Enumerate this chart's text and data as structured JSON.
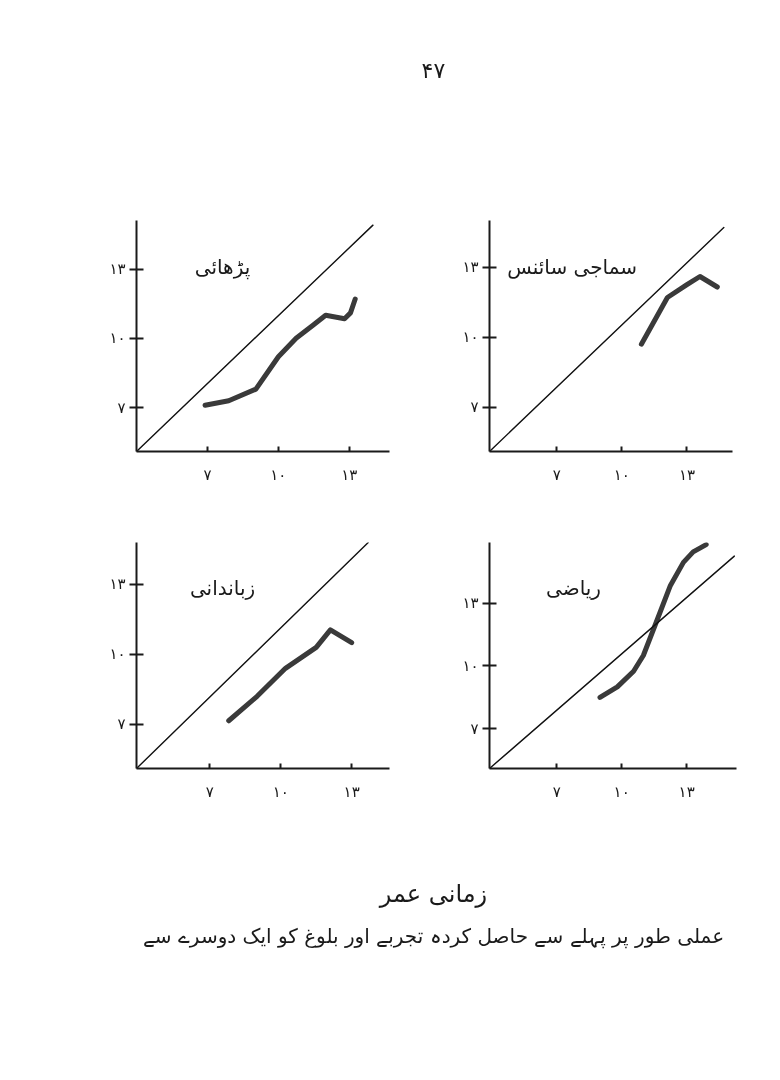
{
  "chart_data": [
    {
      "type": "line",
      "title": "پڑھائی",
      "annotations": [
        "۴۷"
      ],
      "xlim": [
        4.0,
        14.7
      ],
      "ylim": [
        5.1,
        15.1
      ],
      "xticks": [
        {
          "value": 7,
          "label": "۷"
        },
        {
          "value": 10,
          "label": "۱۰"
        },
        {
          "value": 13,
          "label": "۱۳"
        }
      ],
      "yticks": [
        {
          "value": 7,
          "label": "۷"
        },
        {
          "value": 10,
          "label": "۱۰"
        },
        {
          "value": 13,
          "label": "۱۳"
        }
      ],
      "series": [
        {
          "color": "#3a3a3a",
          "x": [
            6.9,
            7.9,
            9.05,
            10.0,
            10.75,
            11.45,
            12.0,
            12.8,
            13.05,
            13.25
          ],
          "values": [
            7.1,
            7.3,
            7.8,
            9.2,
            10.0,
            10.55,
            11.0,
            10.85,
            11.1,
            11.7
          ]
        },
        {
          "color": "#111111",
          "x": [
            4.0,
            14.0
          ],
          "values": [
            5.1,
            14.9
          ]
        }
      ]
    },
    {
      "type": "line",
      "title": "سماجی سائنس",
      "xlim": [
        3.9,
        15.1
      ],
      "ylim": [
        5.1,
        15.0
      ],
      "xticks": [
        {
          "value": 7,
          "label": "۷"
        },
        {
          "value": 10,
          "label": "۱۰"
        },
        {
          "value": 13,
          "label": "۱۳"
        }
      ],
      "yticks": [
        {
          "value": 7,
          "label": "۷"
        },
        {
          "value": 10,
          "label": "۱۰"
        },
        {
          "value": 13,
          "label": "۱۳"
        }
      ],
      "series": [
        {
          "color": "#3a3a3a",
          "x": [
            10.9,
            12.1,
            13.0,
            13.6,
            14.4
          ],
          "values": [
            9.7,
            11.7,
            12.25,
            12.6,
            12.15
          ]
        },
        {
          "color": "#111111",
          "x": [
            3.9,
            14.7
          ],
          "values": [
            5.1,
            14.7
          ]
        }
      ]
    },
    {
      "type": "line",
      "title": "زباندانی",
      "xlim": [
        3.9,
        14.6
      ],
      "ylim": [
        5.1,
        14.8
      ],
      "xticks": [
        {
          "value": 7,
          "label": "۷"
        },
        {
          "value": 10,
          "label": "۱۰"
        },
        {
          "value": 13,
          "label": "۱۳"
        }
      ],
      "yticks": [
        {
          "value": 7,
          "label": "۷"
        },
        {
          "value": 10,
          "label": "۱۰"
        },
        {
          "value": 13,
          "label": "۱۳"
        }
      ],
      "series": [
        {
          "color": "#3a3a3a",
          "x": [
            7.8,
            9.0,
            10.2,
            11.5,
            12.1,
            13.0
          ],
          "values": [
            7.15,
            8.2,
            9.4,
            10.3,
            11.05,
            10.5
          ]
        },
        {
          "color": "#111111",
          "x": [
            3.9,
            13.7
          ],
          "values": [
            5.1,
            14.8
          ]
        }
      ]
    },
    {
      "type": "line",
      "title": "ریاضی",
      "annotations": [
        "زمانی عمر",
        "عملی طور پر پہلے سے حاصل کردہ تجربے اور بلوغ کو ایک دوسرے سے"
      ],
      "xlim": [
        3.9,
        15.3
      ],
      "ylim": [
        5.1,
        15.9
      ],
      "xticks": [
        {
          "value": 7,
          "label": "۷"
        },
        {
          "value": 10,
          "label": "۱۰"
        },
        {
          "value": 13,
          "label": "۱۳"
        }
      ],
      "yticks": [
        {
          "value": 7,
          "label": "۷"
        },
        {
          "value": 10,
          "label": "۱۰"
        },
        {
          "value": 13,
          "label": "۱۳"
        }
      ],
      "series": [
        {
          "color": "#3a3a3a",
          "x": [
            9.0,
            9.8,
            10.55,
            11.0,
            11.6,
            12.25,
            12.85,
            13.3,
            13.9
          ],
          "values": [
            8.5,
            9.0,
            9.75,
            10.5,
            12.1,
            13.85,
            14.95,
            15.45,
            15.8
          ]
        },
        {
          "color": "#111111",
          "x": [
            3.9,
            15.2
          ],
          "values": [
            5.1,
            15.25
          ]
        }
      ]
    }
  ]
}
